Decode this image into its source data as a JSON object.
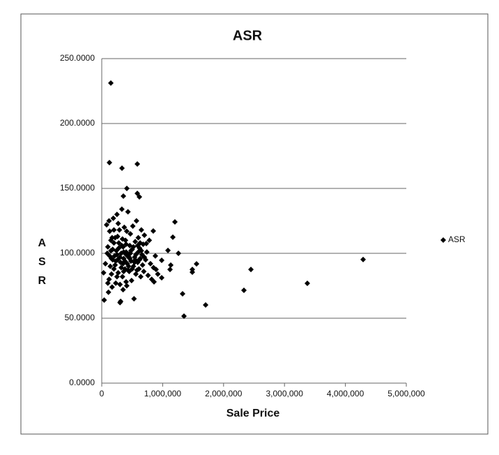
{
  "chart_data": {
    "type": "scatter",
    "title": "ASR",
    "x_label": "Sale Price",
    "y_label": "ASR",
    "x": [
      149000,
      126000,
      332000,
      584000,
      412000,
      584000,
      618000,
      355000,
      1201000,
      1167000,
      1259000,
      1327000,
      1350000,
      1487000,
      1487000,
      1556000,
      1705000,
      2334000,
      2449000,
      3375000,
      4291000,
      1133000,
      1121000,
      984000,
      984000,
      1087000,
      858000,
      892000,
      846000,
      732000,
      30000,
      40000,
      60000,
      80000,
      90000,
      100000,
      110000,
      120000,
      130000,
      140000,
      150000,
      160000,
      170000,
      180000,
      190000,
      200000,
      210000,
      220000,
      230000,
      240000,
      250000,
      260000,
      270000,
      280000,
      290000,
      300000,
      310000,
      320000,
      330000,
      340000,
      350000,
      360000,
      370000,
      380000,
      390000,
      400000,
      410000,
      420000,
      430000,
      440000,
      450000,
      460000,
      470000,
      480000,
      490000,
      500000,
      510000,
      520000,
      530000,
      540000,
      550000,
      560000,
      570000,
      580000,
      590000,
      600000,
      610000,
      620000,
      630000,
      640000,
      650000,
      660000,
      670000,
      680000,
      690000,
      700000,
      720000,
      740000,
      760000,
      780000,
      800000,
      820000,
      850000,
      880000,
      920000,
      150000,
      180000,
      200000,
      220000,
      250000,
      280000,
      300000,
      320000,
      340000,
      360000,
      380000,
      400000,
      420000,
      440000,
      460000,
      480000,
      500000,
      520000,
      540000,
      560000,
      580000,
      600000,
      620000,
      250000,
      300000,
      350000,
      400000,
      200000,
      270000,
      310000,
      350000,
      380000,
      450000,
      130000,
      170000,
      230000,
      330000,
      430000,
      470000,
      550000,
      650000,
      700000,
      100000,
      120000,
      160000,
      260000,
      360000,
      410000,
      590000,
      630000
    ],
    "series": [
      {
        "name": "ASR",
        "color": "#000000",
        "values": [
          231.2,
          169.9,
          165.6,
          168.8,
          150,
          146.2,
          143.5,
          144.1,
          124.2,
          112.4,
          100,
          68.8,
          51.6,
          87.6,
          85.5,
          91.9,
          60.2,
          71.5,
          87.6,
          76.9,
          95.2,
          90.9,
          87.6,
          94.6,
          81.2,
          102.2,
          78,
          87.6,
          117.2,
          107.5,
          85,
          64,
          92,
          122,
          100,
          105,
          70,
          80,
          117,
          90,
          110,
          96,
          74,
          103,
          127,
          88,
          98,
          112,
          77,
          102,
          130,
          95,
          85,
          108,
          118,
          62,
          93,
          100,
          134,
          82,
          105,
          96,
          120,
          88,
          110,
          101,
          75,
          92,
          132,
          99,
          86,
          106,
          115,
          94,
          79,
          103,
          121,
          90,
          65,
          97,
          109,
          84,
          125,
          100,
          93,
          112,
          88,
          104,
          96,
          82,
          118,
          99,
          91,
          107,
          86,
          114,
          95,
          101,
          83,
          110,
          92,
          80,
          89,
          98,
          84,
          102,
          95,
          108,
          91,
          99,
          104,
          97,
          89,
          111,
          101,
          94,
          107,
          98,
          90,
          96,
          102,
          88,
          105,
          93,
          99,
          87,
          101,
          95,
          82,
          76,
          72,
          78,
          118,
          123,
          63,
          92,
          100,
          97,
          98,
          112,
          94,
          106,
          87,
          100,
          95,
          102,
          97,
          77,
          125,
          84,
          113,
          86,
          117,
          106,
          108
        ]
      }
    ],
    "xlim": [
      0,
      5000000
    ],
    "xticks": [
      0,
      {
        "value": 1000000,
        "label": "1,000,000"
      },
      {
        "value": 2000000,
        "label": "2,000,000"
      },
      {
        "value": 3000000,
        "label": "3,000,000"
      },
      {
        "value": 4000000,
        "label": "4,000,000"
      },
      {
        "value": 5000000,
        "label": "5,000,000"
      }
    ],
    "ylim": [
      0,
      250
    ],
    "yticks": [
      {
        "value": 0,
        "label": "0.0000"
      },
      {
        "value": 50,
        "label": "50.0000"
      },
      {
        "value": 100,
        "label": "100.0000"
      },
      {
        "value": 150,
        "label": "150.0000"
      },
      {
        "value": 200,
        "label": "200.0000"
      },
      {
        "value": 250,
        "label": "250.0000"
      }
    ],
    "grid": true,
    "legend": "right"
  }
}
